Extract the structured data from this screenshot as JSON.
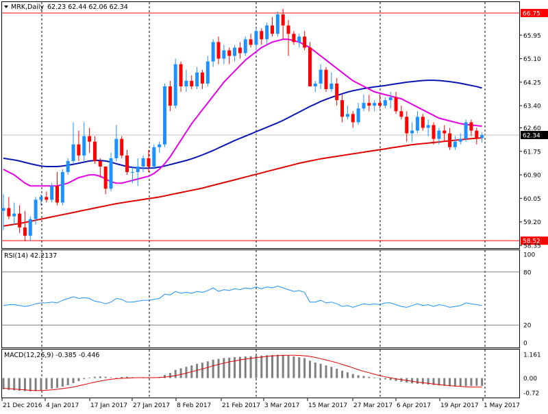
{
  "header": {
    "symbol": "MRK,Daily",
    "ohlc": "62.23 62.44 62.06 62.34",
    "rsi_title": "RSI(14) 42.2137",
    "macd_title": "MACD(12,26,9) -0.385 -0.446"
  },
  "colors": {
    "bull": "#1e90ff",
    "bear": "#ff0000",
    "ma_fast": "#e600e6",
    "ma_mid": "#0a14b4",
    "ma_slow": "#e00000",
    "rsi": "#1e90ff",
    "macd_hist": "#808080",
    "macd_signal": "#e00000",
    "level_box": "#ff0000",
    "price_box": "#000000"
  },
  "chart_data": [
    {
      "type": "candlestick",
      "name": "price",
      "ylim": [
        58.35,
        66.75
      ],
      "y_ticks": [
        "65.95",
        "65.10",
        "64.25",
        "63.40",
        "62.60",
        "61.75",
        "60.90",
        "60.05",
        "59.20",
        "58.35"
      ],
      "x_ticks": [
        "21 Dec 2016",
        "4 Jan 2017",
        "17 Jan 2017",
        "27 Jan 2017",
        "8 Feb 2017",
        "21 Feb 2017",
        "3 Mar 2017",
        "15 Mar 2017",
        "27 Mar 2017",
        "6 Apr 2017",
        "19 Apr 2017",
        "1 May 2017"
      ],
      "hlines": [
        {
          "value": 66.75,
          "label": "66.75"
        },
        {
          "value": 58.52,
          "label": "58.52"
        }
      ],
      "last_price": {
        "value": 62.34,
        "label": "62.34"
      },
      "candles": [
        [
          59.6,
          60.2,
          58.9,
          59.7
        ],
        [
          59.7,
          60.1,
          59.3,
          59.4
        ],
        [
          59.4,
          59.9,
          59.1,
          59.5
        ],
        [
          59.5,
          59.8,
          58.8,
          59.0
        ],
        [
          59.0,
          59.6,
          58.5,
          58.7
        ],
        [
          58.7,
          59.4,
          58.5,
          59.3
        ],
        [
          59.3,
          60.1,
          59.1,
          60.0
        ],
        [
          60.0,
          60.2,
          59.8,
          60.1
        ],
        [
          60.1,
          60.3,
          59.9,
          60.0
        ],
        [
          60.0,
          60.6,
          59.9,
          60.5
        ],
        [
          60.5,
          61.0,
          59.8,
          59.9
        ],
        [
          59.9,
          61.1,
          59.8,
          61.0
        ],
        [
          61.0,
          61.5,
          60.9,
          61.4
        ],
        [
          61.4,
          62.8,
          61.3,
          62.0
        ],
        [
          62.0,
          62.5,
          61.4,
          61.6
        ],
        [
          61.6,
          62.8,
          61.4,
          62.3
        ],
        [
          62.3,
          62.6,
          61.7,
          62.1
        ],
        [
          62.1,
          62.3,
          61.3,
          61.4
        ],
        [
          61.4,
          61.5,
          60.8,
          61.2
        ],
        [
          61.2,
          61.2,
          60.2,
          60.4
        ],
        [
          60.4,
          61.7,
          60.3,
          61.5
        ],
        [
          61.5,
          62.7,
          61.4,
          62.2
        ],
        [
          62.2,
          62.3,
          61.5,
          61.6
        ],
        [
          61.6,
          61.8,
          60.9,
          61.0
        ],
        [
          61.0,
          61.2,
          60.6,
          61.0
        ],
        [
          61.0,
          61.5,
          60.5,
          61.2
        ],
        [
          61.2,
          61.6,
          61.0,
          61.5
        ],
        [
          61.5,
          61.8,
          61.0,
          61.2
        ],
        [
          61.2,
          62.0,
          61.1,
          61.9
        ],
        [
          61.9,
          62.1,
          61.7,
          62.0
        ],
        [
          62.0,
          64.2,
          61.9,
          64.1
        ],
        [
          64.1,
          64.3,
          63.2,
          63.4
        ],
        [
          63.4,
          65.1,
          63.3,
          64.9
        ],
        [
          64.9,
          65.0,
          63.9,
          64.1
        ],
        [
          64.1,
          64.7,
          63.9,
          64.3
        ],
        [
          64.3,
          64.5,
          64.0,
          64.1
        ],
        [
          64.1,
          64.8,
          64.0,
          64.6
        ],
        [
          64.6,
          64.7,
          64.0,
          64.2
        ],
        [
          64.2,
          65.2,
          64.1,
          65.0
        ],
        [
          65.0,
          65.8,
          64.8,
          65.7
        ],
        [
          65.7,
          65.9,
          64.9,
          65.1
        ],
        [
          65.1,
          65.6,
          64.9,
          65.4
        ],
        [
          65.4,
          65.5,
          64.9,
          65.2
        ],
        [
          65.2,
          65.6,
          65.0,
          65.5
        ],
        [
          65.5,
          65.7,
          65.1,
          65.3
        ],
        [
          65.3,
          65.9,
          65.2,
          65.8
        ],
        [
          65.8,
          66.0,
          65.5,
          65.6
        ],
        [
          65.6,
          66.2,
          65.4,
          66.1
        ],
        [
          66.1,
          66.2,
          65.6,
          65.8
        ],
        [
          65.8,
          66.4,
          65.6,
          66.3
        ],
        [
          66.3,
          66.6,
          65.9,
          66.0
        ],
        [
          66.0,
          66.8,
          65.9,
          66.7
        ],
        [
          66.7,
          66.9,
          65.8,
          66.3
        ],
        [
          66.3,
          66.5,
          65.2,
          66.0
        ],
        [
          66.0,
          66.1,
          65.6,
          65.7
        ],
        [
          65.7,
          66.0,
          65.5,
          65.9
        ],
        [
          65.9,
          66.1,
          65.4,
          65.5
        ],
        [
          65.5,
          65.7,
          64.1,
          64.1
        ],
        [
          64.1,
          64.3,
          63.9,
          64.2
        ],
        [
          64.2,
          64.9,
          64.0,
          64.7
        ],
        [
          64.7,
          64.8,
          63.9,
          64.0
        ],
        [
          64.0,
          64.6,
          63.9,
          64.2
        ],
        [
          64.2,
          64.4,
          63.4,
          63.6
        ],
        [
          63.6,
          63.8,
          62.8,
          63.0
        ],
        [
          63.0,
          63.4,
          62.9,
          63.1
        ],
        [
          63.1,
          63.2,
          62.6,
          62.8
        ],
        [
          62.8,
          63.5,
          62.7,
          63.3
        ],
        [
          63.3,
          63.8,
          63.2,
          63.5
        ],
        [
          63.5,
          63.8,
          63.2,
          63.4
        ],
        [
          63.4,
          63.6,
          63.2,
          63.5
        ],
        [
          63.5,
          63.8,
          63.3,
          63.4
        ],
        [
          63.4,
          63.7,
          63.3,
          63.6
        ],
        [
          63.6,
          63.9,
          63.3,
          63.7
        ],
        [
          63.7,
          63.9,
          63.1,
          63.2
        ],
        [
          63.2,
          63.4,
          62.9,
          63.0
        ],
        [
          63.0,
          63.2,
          62.1,
          62.4
        ],
        [
          62.4,
          62.8,
          62.1,
          62.5
        ],
        [
          62.5,
          63.2,
          62.4,
          63.0
        ],
        [
          63.0,
          63.1,
          62.5,
          62.6
        ],
        [
          62.6,
          62.9,
          62.3,
          62.7
        ],
        [
          62.7,
          62.8,
          62.0,
          62.2
        ],
        [
          62.2,
          62.6,
          62.0,
          62.5
        ],
        [
          62.5,
          62.7,
          62.1,
          62.4
        ],
        [
          62.4,
          62.6,
          61.8,
          61.9
        ],
        [
          61.9,
          62.3,
          61.8,
          62.1
        ],
        [
          62.1,
          62.4,
          62.0,
          62.2
        ],
        [
          62.2,
          62.9,
          62.1,
          62.8
        ],
        [
          62.8,
          62.9,
          62.3,
          62.5
        ],
        [
          62.5,
          62.6,
          62.0,
          62.2
        ],
        [
          62.23,
          62.44,
          62.06,
          62.34
        ]
      ],
      "ma_fast": [
        61.1,
        61.0,
        60.9,
        60.75,
        60.6,
        60.5,
        60.5,
        60.5,
        60.5,
        60.5,
        60.5,
        60.55,
        60.6,
        60.7,
        60.8,
        60.85,
        60.9,
        60.9,
        60.85,
        60.75,
        60.65,
        60.6,
        60.6,
        60.65,
        60.7,
        60.75,
        60.8,
        60.85,
        60.95,
        61.1,
        61.3,
        61.55,
        61.85,
        62.15,
        62.45,
        62.75,
        63.0,
        63.25,
        63.5,
        63.75,
        64.0,
        64.25,
        64.45,
        64.65,
        64.85,
        65.05,
        65.2,
        65.35,
        65.5,
        65.6,
        65.7,
        65.75,
        65.8,
        65.8,
        65.75,
        65.7,
        65.6,
        65.5,
        65.35,
        65.2,
        65.05,
        64.9,
        64.75,
        64.6,
        64.45,
        64.3,
        64.2,
        64.1,
        64.0,
        63.9,
        63.85,
        63.8,
        63.75,
        63.7,
        63.65,
        63.55,
        63.45,
        63.35,
        63.25,
        63.15,
        63.05,
        62.95,
        62.9,
        62.85,
        62.8,
        62.75,
        62.72,
        62.7,
        62.68,
        62.66
      ],
      "ma_mid": [
        61.5,
        61.47,
        61.44,
        61.4,
        61.35,
        61.3,
        61.26,
        61.22,
        61.2,
        61.2,
        61.2,
        61.22,
        61.25,
        61.28,
        61.32,
        61.36,
        61.4,
        61.42,
        61.42,
        61.4,
        61.36,
        61.3,
        61.25,
        61.2,
        61.17,
        61.15,
        61.14,
        61.14,
        61.15,
        61.18,
        61.22,
        61.27,
        61.32,
        61.37,
        61.42,
        61.48,
        61.55,
        61.62,
        61.7,
        61.78,
        61.87,
        61.96,
        62.05,
        62.14,
        62.22,
        62.3,
        62.38,
        62.46,
        62.54,
        62.62,
        62.7,
        62.78,
        62.87,
        62.97,
        63.07,
        63.17,
        63.27,
        63.37,
        63.46,
        63.55,
        63.63,
        63.7,
        63.77,
        63.83,
        63.89,
        63.94,
        63.98,
        64.02,
        64.05,
        64.08,
        64.1,
        64.13,
        64.16,
        64.19,
        64.22,
        64.25,
        64.27,
        64.29,
        64.31,
        64.32,
        64.32,
        64.31,
        64.29,
        64.27,
        64.24,
        64.21,
        64.17,
        64.13,
        64.09,
        64.04
      ],
      "ma_slow": [
        59.05,
        59.08,
        59.11,
        59.14,
        59.18,
        59.22,
        59.26,
        59.3,
        59.34,
        59.38,
        59.42,
        59.46,
        59.5,
        59.54,
        59.58,
        59.62,
        59.66,
        59.7,
        59.74,
        59.78,
        59.82,
        59.86,
        59.89,
        59.92,
        59.95,
        59.98,
        60.01,
        60.04,
        60.07,
        60.1,
        60.14,
        60.18,
        60.22,
        60.26,
        60.3,
        60.34,
        60.38,
        60.42,
        60.47,
        60.52,
        60.57,
        60.62,
        60.67,
        60.72,
        60.77,
        60.82,
        60.87,
        60.92,
        60.97,
        61.02,
        61.07,
        61.12,
        61.17,
        61.22,
        61.27,
        61.32,
        61.36,
        61.4,
        61.44,
        61.48,
        61.51,
        61.54,
        61.57,
        61.6,
        61.63,
        61.66,
        61.69,
        61.72,
        61.75,
        61.78,
        61.81,
        61.84,
        61.87,
        61.9,
        61.93,
        61.96,
        61.99,
        62.01,
        62.03,
        62.05,
        62.07,
        62.09,
        62.11,
        62.13,
        62.15,
        62.17,
        62.19,
        62.21,
        62.22,
        62.24
      ]
    },
    {
      "type": "line",
      "name": "RSI(14)",
      "ylim": [
        0,
        100
      ],
      "y_ticks": [
        "100",
        "80",
        "20",
        "0"
      ],
      "levels": [
        80,
        20
      ],
      "values": [
        42,
        43,
        43,
        42,
        41,
        42,
        44,
        45,
        45,
        46,
        45,
        48,
        50,
        52,
        50,
        51,
        50,
        47,
        46,
        44,
        46,
        50,
        49,
        46,
        46,
        47,
        48,
        48,
        49,
        50,
        55,
        54,
        58,
        56,
        57,
        56,
        58,
        57,
        59,
        62,
        58,
        60,
        59,
        61,
        60,
        62,
        61,
        63,
        61,
        63,
        62,
        64,
        62,
        60,
        58,
        59,
        57,
        46,
        46,
        48,
        45,
        46,
        44,
        41,
        42,
        40,
        42,
        44,
        43,
        44,
        43,
        45,
        45,
        43,
        41,
        40,
        42,
        44,
        42,
        43,
        41,
        43,
        42,
        40,
        41,
        42,
        45,
        44,
        43,
        42
      ]
    },
    {
      "type": "bar",
      "name": "MACD(12,26,9)",
      "ylim": [
        -0.72,
        1.161
      ],
      "y_ticks": [
        "1.161",
        "0.00",
        "-0.72"
      ],
      "histogram": [
        -0.55,
        -0.58,
        -0.6,
        -0.62,
        -0.64,
        -0.65,
        -0.64,
        -0.6,
        -0.56,
        -0.52,
        -0.48,
        -0.42,
        -0.35,
        -0.25,
        -0.15,
        -0.05,
        0.02,
        0.06,
        0.08,
        0.06,
        0.03,
        0.02,
        0.05,
        0.06,
        0.04,
        0.03,
        0.02,
        0.02,
        0.03,
        0.05,
        0.15,
        0.25,
        0.4,
        0.48,
        0.55,
        0.62,
        0.7,
        0.75,
        0.82,
        0.9,
        0.94,
        0.98,
        1.0,
        1.02,
        1.04,
        1.06,
        1.07,
        1.09,
        1.1,
        1.12,
        1.13,
        1.14,
        1.14,
        1.1,
        1.06,
        1.02,
        0.98,
        0.85,
        0.76,
        0.7,
        0.62,
        0.55,
        0.46,
        0.36,
        0.28,
        0.2,
        0.14,
        0.1,
        0.06,
        0.02,
        -0.02,
        -0.06,
        -0.1,
        -0.14,
        -0.18,
        -0.22,
        -0.26,
        -0.28,
        -0.3,
        -0.32,
        -0.34,
        -0.36,
        -0.38,
        -0.4,
        -0.41,
        -0.42,
        -0.4,
        -0.39,
        -0.38,
        -0.385
      ],
      "signal": [
        -0.5,
        -0.52,
        -0.54,
        -0.56,
        -0.58,
        -0.6,
        -0.61,
        -0.61,
        -0.6,
        -0.58,
        -0.55,
        -0.52,
        -0.48,
        -0.44,
        -0.38,
        -0.32,
        -0.26,
        -0.2,
        -0.15,
        -0.1,
        -0.06,
        -0.03,
        -0.01,
        0.0,
        0.01,
        0.02,
        0.02,
        0.02,
        0.02,
        0.03,
        0.05,
        0.08,
        0.12,
        0.18,
        0.24,
        0.31,
        0.38,
        0.45,
        0.52,
        0.6,
        0.67,
        0.73,
        0.79,
        0.84,
        0.89,
        0.93,
        0.97,
        1.0,
        1.03,
        1.06,
        1.08,
        1.1,
        1.11,
        1.12,
        1.12,
        1.11,
        1.09,
        1.06,
        1.01,
        0.95,
        0.89,
        0.82,
        0.75,
        0.67,
        0.59,
        0.5,
        0.41,
        0.33,
        0.26,
        0.19,
        0.12,
        0.06,
        0.01,
        -0.04,
        -0.08,
        -0.12,
        -0.16,
        -0.2,
        -0.23,
        -0.26,
        -0.29,
        -0.32,
        -0.35,
        -0.37,
        -0.39,
        -0.41,
        -0.43,
        -0.44,
        -0.445,
        -0.446
      ]
    }
  ]
}
